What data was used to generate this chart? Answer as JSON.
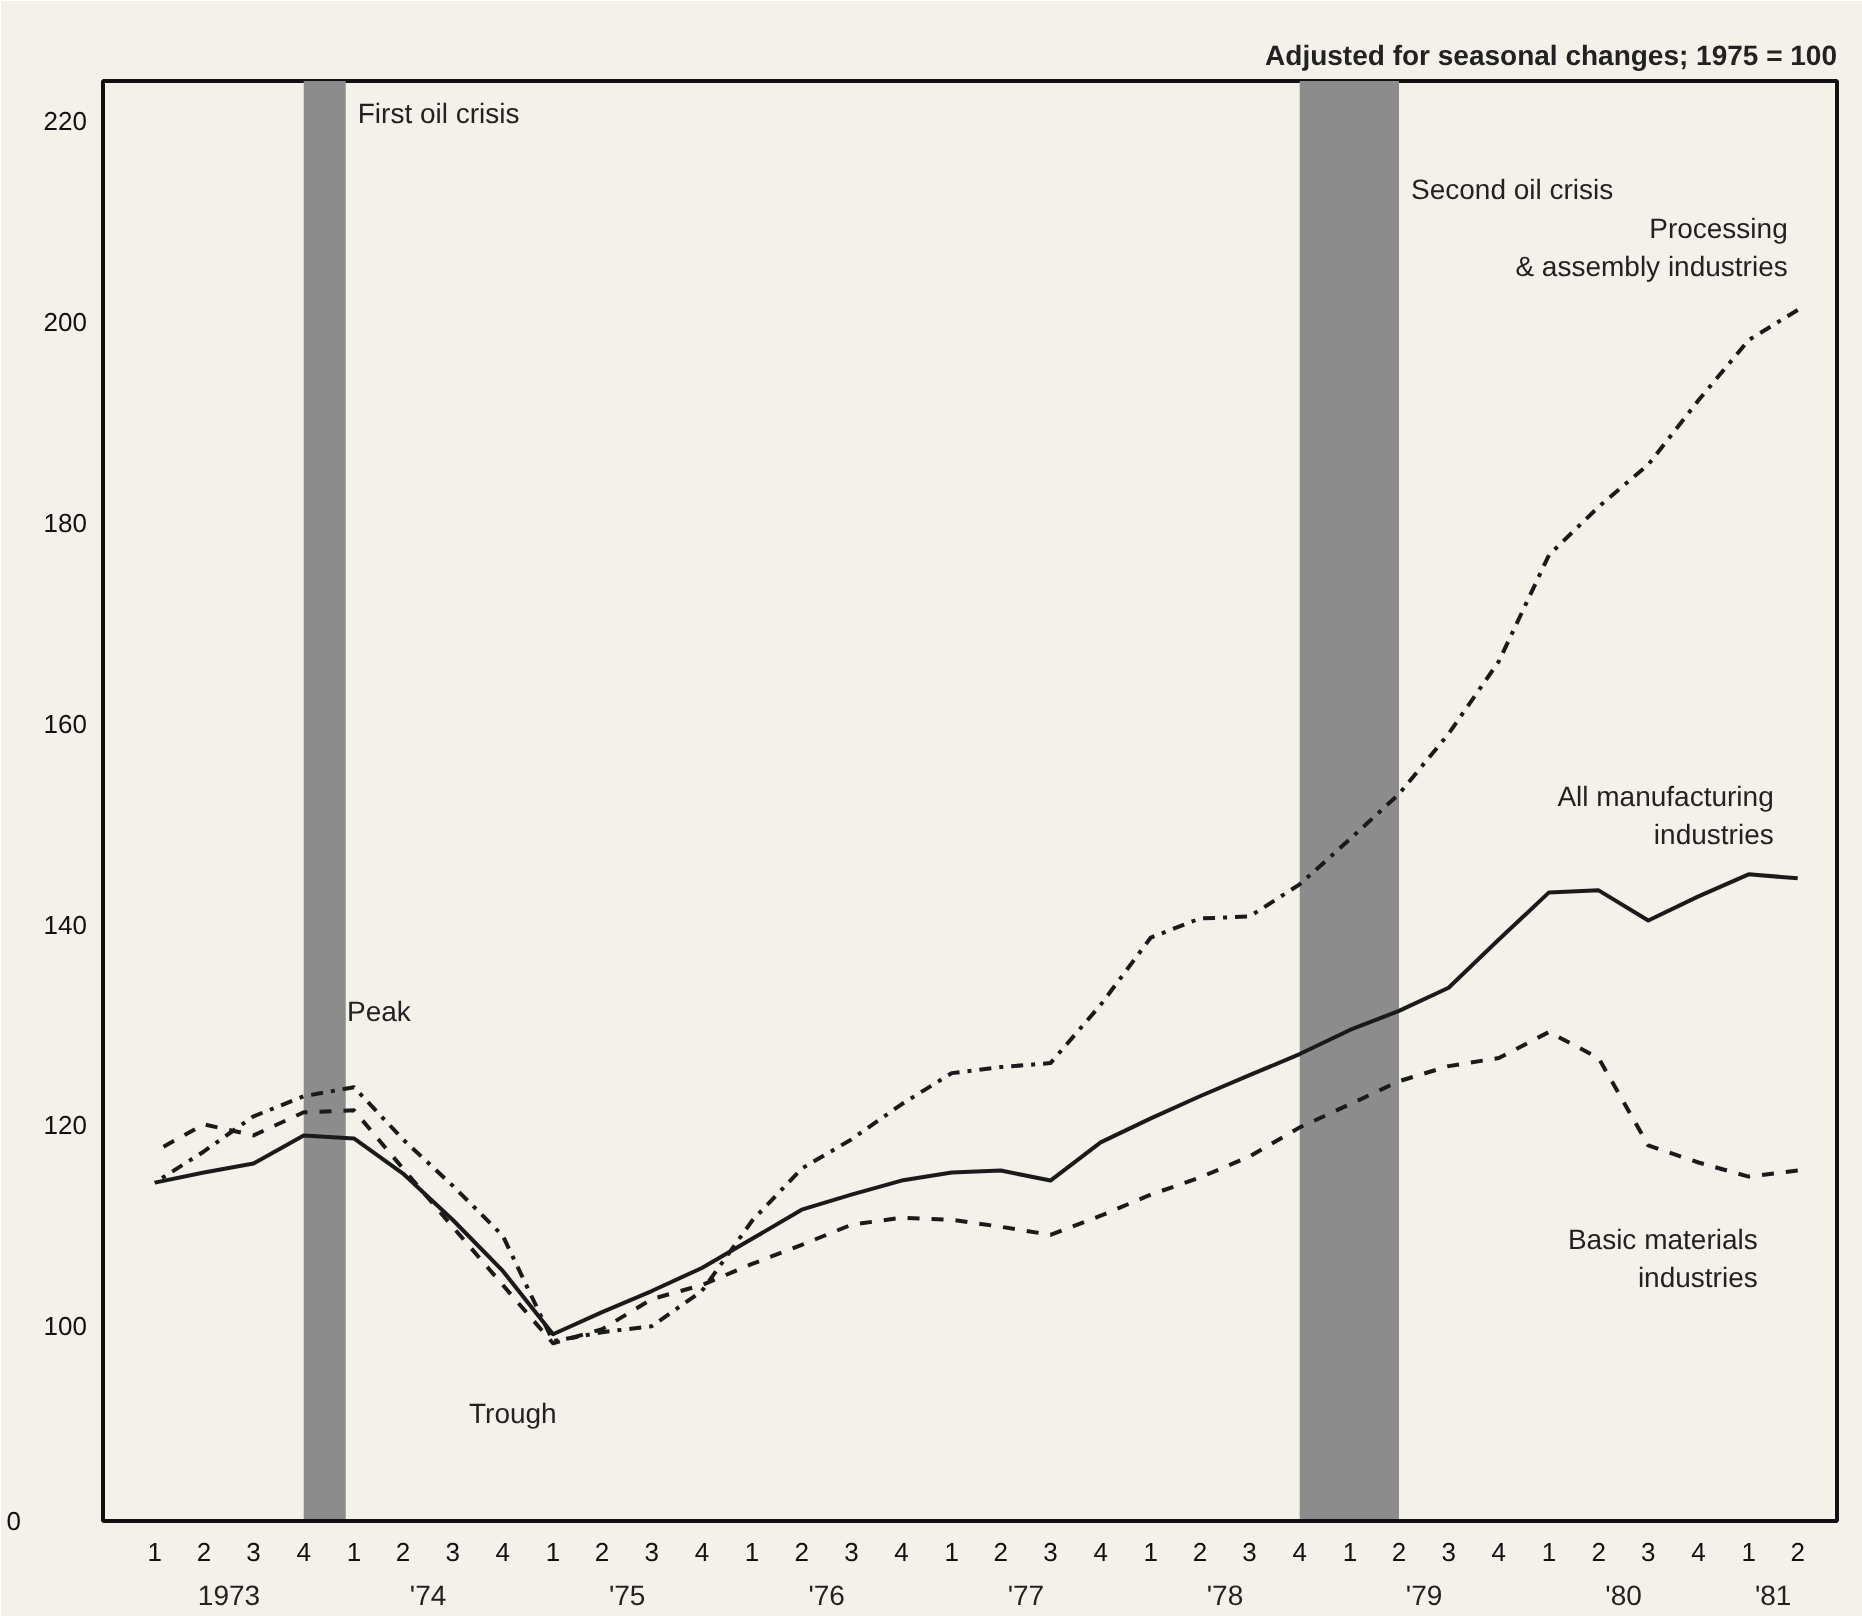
{
  "chart_data": {
    "type": "line",
    "subtitle": "Adjusted for seasonal changes; 1975 = 100",
    "x": [
      "1973-01",
      "1973-04",
      "1973-07",
      "1973-10",
      "1974-01",
      "1974-04",
      "1974-07",
      "1974-10",
      "1975-01",
      "1975-04",
      "1975-07",
      "1975-10",
      "1976-01",
      "1976-04",
      "1976-07",
      "1976-10",
      "1977-01",
      "1977-04",
      "1977-07",
      "1977-10",
      "1978-01",
      "1978-04",
      "1978-07",
      "1978-10",
      "1979-01",
      "1979-04",
      "1979-07",
      "1979-10",
      "1980-01",
      "1980-04",
      "1980-07",
      "1980-10",
      "1981-01",
      "1981-04"
    ],
    "series": [
      {
        "name": "Processing\n& assembly industries",
        "color": "#1a1a1a",
        "line_style": "dashdot",
        "values": [
          114.3,
          117.4,
          120.9,
          122.9,
          123.8,
          118.6,
          114,
          109,
          98.5,
          99.4,
          100,
          103.5,
          110.5,
          115.7,
          118.6,
          122.1,
          125.2,
          125.8,
          126.2,
          132,
          138.7,
          140.6,
          140.8,
          144,
          148.5,
          153,
          159,
          166.2,
          176.8,
          181.6,
          185.8,
          192.2,
          198.2,
          201.2
        ]
      },
      {
        "name": "All manufacturing\nindustries",
        "color": "#1a1a1a",
        "line_style": "solid",
        "values": [
          114.3,
          115.3,
          116.2,
          119,
          118.7,
          115.2,
          110.6,
          105.5,
          99.2,
          101.4,
          103.5,
          105.8,
          108.7,
          111.6,
          113.1,
          114.5,
          115.3,
          115.5,
          114.5,
          118.3,
          120.7,
          122.9,
          125,
          127.1,
          129.5,
          131.4,
          133.7,
          138.5,
          143.2,
          143.4,
          140.4,
          142.8,
          145,
          144.6
        ]
      },
      {
        "name": "Basic materials\nindustries",
        "color": "#1a1a1a",
        "line_style": "dashed",
        "values": [
          117.4,
          120.1,
          119,
          121.3,
          121.5,
          115.7,
          109.9,
          104.1,
          98.3,
          99.7,
          102.7,
          104.1,
          106.2,
          108.1,
          110.1,
          110.8,
          110.6,
          109.9,
          109.1,
          111,
          113.1,
          114.8,
          116.9,
          119.8,
          122.1,
          124.4,
          125.9,
          126.7,
          129.3,
          126.7,
          118,
          116.3,
          114.9,
          115.5
        ]
      }
    ],
    "xlim": [
      "1972-09-28",
      "1981-06-12"
    ],
    "xticks": [
      {
        "value": "1973-01",
        "label": "1"
      },
      {
        "value": "1973-04",
        "label": "2"
      },
      {
        "value": "1973-07",
        "label": "3"
      },
      {
        "value": "1973-10",
        "label": "4"
      },
      {
        "value": "1974-01",
        "label": "1"
      },
      {
        "value": "1974-04",
        "label": "2"
      },
      {
        "value": "1974-07",
        "label": "3"
      },
      {
        "value": "1974-10",
        "label": "4"
      },
      {
        "value": "1975-01",
        "label": "1"
      },
      {
        "value": "1975-04",
        "label": "2"
      },
      {
        "value": "1975-07",
        "label": "3"
      },
      {
        "value": "1975-10",
        "label": "4"
      },
      {
        "value": "1976-01",
        "label": "1"
      },
      {
        "value": "1976-04",
        "label": "2"
      },
      {
        "value": "1976-07",
        "label": "3"
      },
      {
        "value": "1976-10",
        "label": "4"
      },
      {
        "value": "1977-01",
        "label": "1"
      },
      {
        "value": "1977-04",
        "label": "2"
      },
      {
        "value": "1977-07",
        "label": "3"
      },
      {
        "value": "1977-10",
        "label": "4"
      },
      {
        "value": "1978-01",
        "label": "1"
      },
      {
        "value": "1978-04",
        "label": "2"
      },
      {
        "value": "1978-07",
        "label": "3"
      },
      {
        "value": "1978-10",
        "label": "4"
      },
      {
        "value": "1979-01",
        "label": "1"
      },
      {
        "value": "1979-04",
        "label": "2"
      },
      {
        "value": "1979-07",
        "label": "3"
      },
      {
        "value": "1979-10",
        "label": "4"
      },
      {
        "value": "1980-01",
        "label": "1"
      },
      {
        "value": "1980-04",
        "label": "2"
      },
      {
        "value": "1980-07",
        "label": "3"
      },
      {
        "value": "1980-10",
        "label": "4"
      },
      {
        "value": "1981-01",
        "label": "1"
      },
      {
        "value": "1981-04",
        "label": "2"
      }
    ],
    "ylim": [
      80.6,
      224
    ],
    "yticks": [
      100,
      120,
      140,
      160,
      180,
      200,
      220
    ],
    "bands": [
      {
        "axis": "x",
        "from": "1973-10",
        "to": "1973-12-17",
        "label": "First oil crisis",
        "color": "#8c8c8c"
      },
      {
        "axis": "x",
        "from": "1978-10",
        "to": "1979-04",
        "label": "Second oil crisis",
        "color": "#8c8c8c"
      }
    ],
    "annotations": [
      "Peak",
      "Trough",
      "0",
      "1973",
      "'74",
      "'75",
      "'76",
      "'77",
      "'78",
      "'79",
      "'80",
      "'81"
    ],
    "grid": false
  }
}
